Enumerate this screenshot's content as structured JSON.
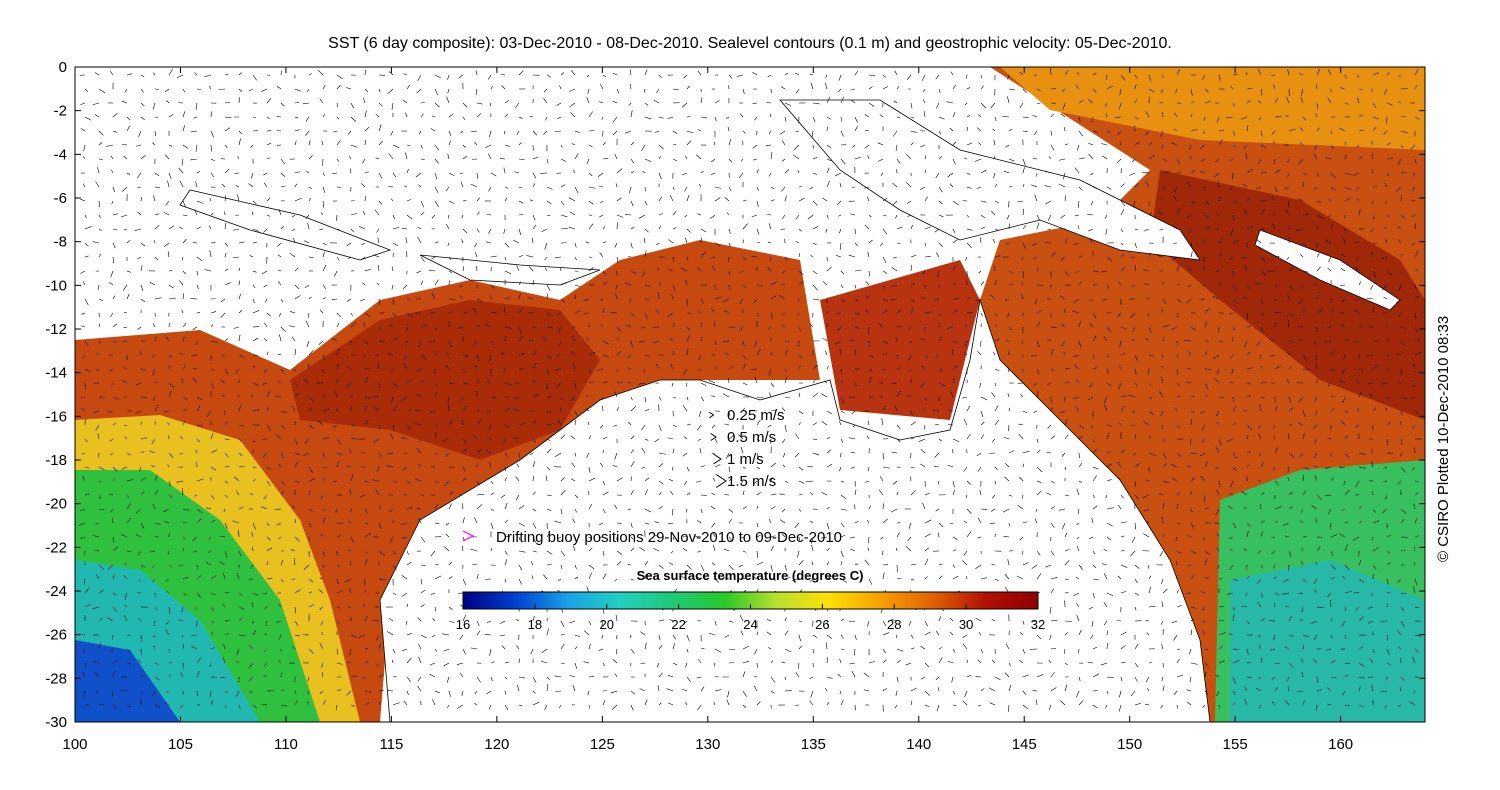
{
  "title": "SST (6 day composite): 03-Dec-2010 - 08-Dec-2010. Sealevel contours (0.1 m) and geostrophic velocity: 05-Dec-2010.",
  "credit": "© CSIRO Plotted 10-Dec-2010 08:33",
  "axes": {
    "x_ticks": [
      "100",
      "105",
      "110",
      "115",
      "120",
      "125",
      "130",
      "135",
      "140",
      "145",
      "150",
      "155",
      "160"
    ],
    "y_ticks": [
      "0",
      "-2",
      "-4",
      "-6",
      "-8",
      "-10",
      "-12",
      "-14",
      "-16",
      "-18",
      "-20",
      "-22",
      "-24",
      "-26",
      "-28",
      "-30"
    ],
    "x_range": [
      100,
      164
    ],
    "y_range": [
      -30,
      0
    ]
  },
  "velocity_legend": [
    {
      "label": "0.25 m/s",
      "speed": 0.25
    },
    {
      "label": "0.5 m/s",
      "speed": 0.5
    },
    {
      "label": "1 m/s",
      "speed": 1
    },
    {
      "label": "1.5 m/s",
      "speed": 1.5
    }
  ],
  "buoy_legend": {
    "label": "Drifting buoy positions 29-Nov-2010 to 09-Dec-2010",
    "color": "#ff00ff"
  },
  "colorbar": {
    "title": "Sea surface temperature (degrees C)",
    "ticks": [
      "16",
      "18",
      "20",
      "22",
      "24",
      "26",
      "28",
      "30",
      "32"
    ],
    "range": [
      16,
      32
    ],
    "colors": [
      "#00007f",
      "#0040d0",
      "#1aa0e8",
      "#20d0c0",
      "#20c878",
      "#28c828",
      "#b8e030",
      "#ffe000",
      "#f8a000",
      "#e06000",
      "#b01000",
      "#8f0000"
    ]
  }
}
